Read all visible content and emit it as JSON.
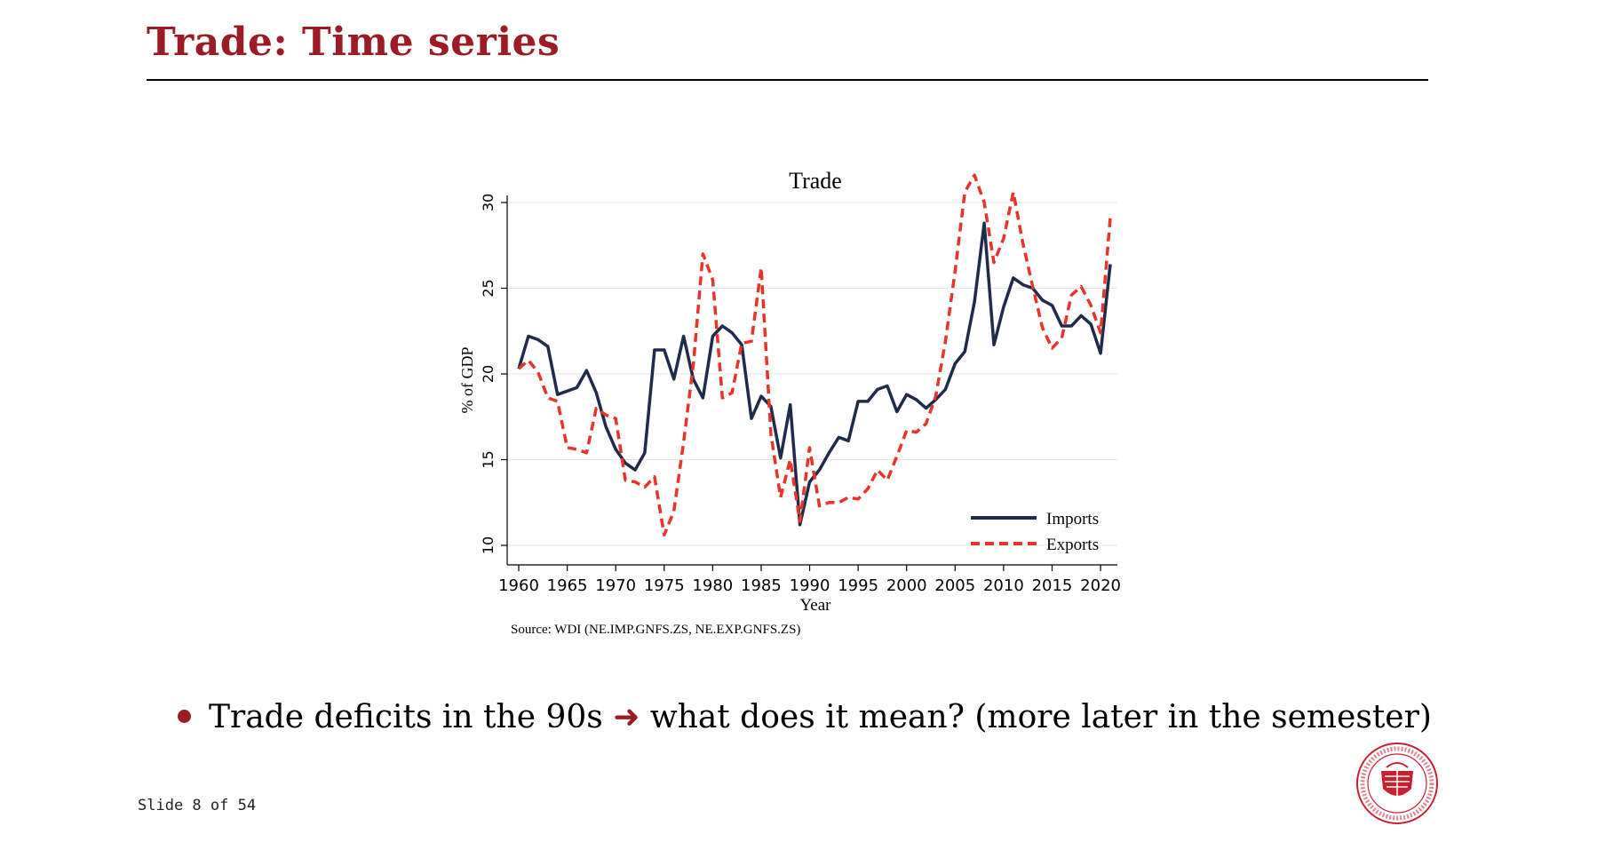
{
  "slide": {
    "title": "Trade: Time series",
    "bullet_prefix": "Trade deficits in the 90s",
    "bullet_arrow": "➜",
    "bullet_suffix": "what does it mean? (more later in the semester)",
    "slide_number": "Slide 8 of 54"
  },
  "colors": {
    "title": "#9b1c24",
    "imports": "#1f2b4a",
    "exports": "#e8342a"
  },
  "chart_data": {
    "type": "line",
    "title": "Trade",
    "xlabel": "Year",
    "ylabel": "% of GDP",
    "note": "Source: WDI (NE.IMP.GNFS.ZS, NE.EXP.GNFS.ZS)",
    "xlim": [
      1960,
      2021
    ],
    "ylim": [
      10,
      32
    ],
    "xticks": [
      1960,
      1965,
      1970,
      1975,
      1980,
      1985,
      1990,
      1995,
      2000,
      2005,
      2010,
      2015,
      2020
    ],
    "yticks": [
      10,
      15,
      20,
      25,
      30
    ],
    "grid": true,
    "legend_position": "bottom-right",
    "x": [
      1960,
      1961,
      1962,
      1963,
      1964,
      1965,
      1966,
      1967,
      1968,
      1969,
      1970,
      1971,
      1972,
      1973,
      1974,
      1975,
      1976,
      1977,
      1978,
      1979,
      1980,
      1981,
      1982,
      1983,
      1984,
      1985,
      1986,
      1987,
      1988,
      1989,
      1990,
      1991,
      1992,
      1993,
      1994,
      1995,
      1996,
      1997,
      1998,
      1999,
      2000,
      2001,
      2002,
      2003,
      2004,
      2005,
      2006,
      2007,
      2008,
      2009,
      2010,
      2011,
      2012,
      2013,
      2014,
      2015,
      2016,
      2017,
      2018,
      2019,
      2020,
      2021
    ],
    "series": [
      {
        "name": "Imports",
        "style": "solid",
        "values": [
          20.3,
          22.2,
          22.0,
          21.6,
          18.8,
          19.0,
          19.2,
          20.2,
          18.9,
          16.9,
          15.6,
          14.8,
          14.4,
          15.4,
          21.4,
          21.4,
          19.7,
          22.2,
          19.7,
          18.6,
          22.2,
          22.8,
          22.4,
          21.7,
          17.4,
          18.7,
          18.1,
          15.1,
          18.2,
          11.2,
          13.7,
          14.4,
          15.4,
          16.3,
          16.1,
          18.4,
          18.4,
          19.1,
          19.3,
          17.8,
          18.8,
          18.5,
          18.0,
          18.5,
          19.1,
          20.6,
          21.3,
          24.2,
          28.8,
          21.7,
          23.9,
          25.6,
          25.2,
          25.0,
          24.3,
          24.0,
          22.8,
          22.8,
          23.4,
          22.9,
          21.2,
          26.4
        ]
      },
      {
        "name": "Exports",
        "style": "dashed",
        "values": [
          20.3,
          20.8,
          20.1,
          18.6,
          18.4,
          15.7,
          15.6,
          15.4,
          18.0,
          17.6,
          17.4,
          13.8,
          13.7,
          13.4,
          14.0,
          10.6,
          12.0,
          16.0,
          20.5,
          27.0,
          25.5,
          18.6,
          18.9,
          21.8,
          21.9,
          26.2,
          16.5,
          12.8,
          15.0,
          11.4,
          15.7,
          12.3,
          12.5,
          12.5,
          12.8,
          12.7,
          13.3,
          14.4,
          13.8,
          15.2,
          16.7,
          16.6,
          17.1,
          18.7,
          21.9,
          26.0,
          30.6,
          31.6,
          30.0,
          26.5,
          27.9,
          30.6,
          27.6,
          25.1,
          22.7,
          21.5,
          22.1,
          24.6,
          25.1,
          24.0,
          22.4,
          29.1
        ]
      }
    ]
  }
}
